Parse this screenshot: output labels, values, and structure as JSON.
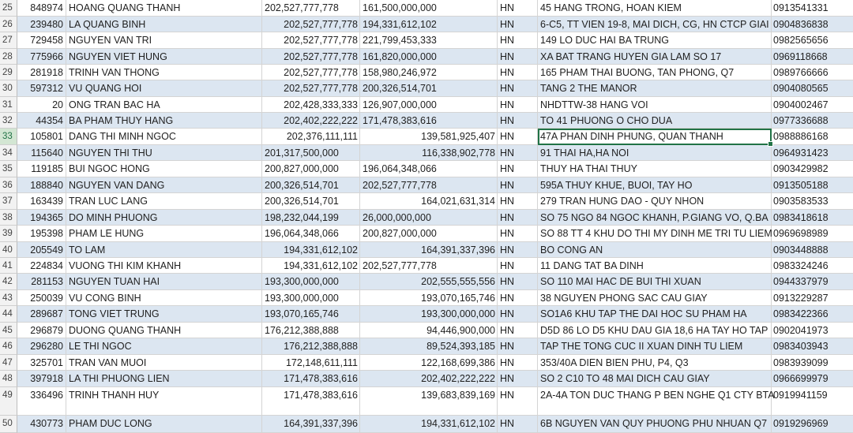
{
  "sheet": {
    "rows": [
      {
        "num": "25",
        "id": "848974",
        "name": "HOANG QUANG THANH",
        "a": "202,527,777,778",
        "a_align": "left",
        "b": "161,500,000,000",
        "b_align": "left",
        "city": "HN",
        "addr": "45 HANG TRONG, HOAN KIEM",
        "phone": "0913541331"
      },
      {
        "num": "26",
        "id": "239480",
        "name": "LA QUANG BINH",
        "a": "202,527,777,778",
        "a_align": "right",
        "b": "194,331,612,102",
        "b_align": "left",
        "city": "HN",
        "addr": "6-C5, TT VIEN 19-8, MAI DICH, CG, HN    CTCP GIAI",
        "phone": "0904836838"
      },
      {
        "num": "27",
        "id": "729458",
        "name": "NGUYEN VAN TRI",
        "a": "202,527,777,778",
        "a_align": "right",
        "b": "221,799,453,333",
        "b_align": "left",
        "city": "HN",
        "addr": "149 LO DUC HAI BA TRUNG",
        "phone": "0982565656"
      },
      {
        "num": "28",
        "id": "775966",
        "name": "NGUYEN VIET HUNG",
        "a": "202,527,777,778",
        "a_align": "right",
        "b": "161,820,000,000",
        "b_align": "left",
        "city": "HN",
        "addr": "XA BAT TRANG HUYEN GIA LAM            SO 17",
        "phone": "0969118668"
      },
      {
        "num": "29",
        "id": "281918",
        "name": "TRINH VAN THONG",
        "a": "202,527,777,778",
        "a_align": "right",
        "b": "158,980,246,972",
        "b_align": "left",
        "city": "HN",
        "addr": "165 PHAM THAI BUONG, TAN PHONG, Q7",
        "phone": "0989766666"
      },
      {
        "num": "30",
        "id": "597312",
        "name": "VU QUANG HOI",
        "a": "202,527,777,778",
        "a_align": "right",
        "b": "200,326,514,701",
        "b_align": "left",
        "city": "HN",
        "addr": "TANG 2 THE MANOR",
        "phone": "0904080565"
      },
      {
        "num": "31",
        "id": "20",
        "name": "ONG TRAN BAC HA",
        "a": "202,428,333,333",
        "a_align": "right",
        "b": "126,907,000,000",
        "b_align": "left",
        "city": "HN",
        "addr": "NHDTTW-38 HANG VOI",
        "phone": "0904002467"
      },
      {
        "num": "32",
        "id": "44354",
        "name": "BA PHAM THUY HANG",
        "a": "202,402,222,222",
        "a_align": "right",
        "b": "171,478,383,616",
        "b_align": "left",
        "city": "HN",
        "addr": "TO 41 PHUONG O CHO DUA",
        "phone": "0977336688"
      },
      {
        "num": "33",
        "id": "105801",
        "name": "DANG THI MINH NGOC",
        "a": "202,376,111,111",
        "a_align": "right",
        "b": "139,581,925,407",
        "b_align": "right",
        "city": "HN",
        "addr": "47A PHAN DINH PHUNG, QUAN THANH",
        "phone": "0988886168",
        "selected": true
      },
      {
        "num": "34",
        "id": "115640",
        "name": "NGUYEN THI THU",
        "a": "201,317,500,000",
        "a_align": "left",
        "b": "116,338,902,778",
        "b_align": "right",
        "city": "HN",
        "addr": "91 THAI HA,HA NOI",
        "phone": "0964931423"
      },
      {
        "num": "35",
        "id": "119185",
        "name": "BUI NGOC HONG",
        "a": "200,827,000,000",
        "a_align": "left",
        "b": "196,064,348,066",
        "b_align": "left",
        "city": "HN",
        "addr": "THUY HA THAI THUY",
        "phone": "0903429982"
      },
      {
        "num": "36",
        "id": "188840",
        "name": "NGUYEN VAN DANG",
        "a": "200,326,514,701",
        "a_align": "left",
        "b": "202,527,777,778",
        "b_align": "left",
        "city": "HN",
        "addr": "595A THUY KHUE, BUOI, TAY HO",
        "phone": "0913505188"
      },
      {
        "num": "37",
        "id": "163439",
        "name": "TRAN LUC LANG",
        "a": "200,326,514,701",
        "a_align": "left",
        "b": "164,021,631,314",
        "b_align": "right",
        "city": "HN",
        "addr": "279 TRAN HUNG DAO - QUY NHON",
        "phone": "0903583533"
      },
      {
        "num": "38",
        "id": "194365",
        "name": "DO MINH PHUONG",
        "a": "198,232,044,199",
        "a_align": "left",
        "b": "26,000,000,000",
        "b_align": "left",
        "city": "HN",
        "addr": "SO 75 NGO 84 NGOC KHANH, P.GIANG VO,    Q.BA",
        "phone": "0983418618"
      },
      {
        "num": "39",
        "id": "195398",
        "name": "PHAM LE HUNG",
        "a": "196,064,348,066",
        "a_align": "left",
        "b": "200,827,000,000",
        "b_align": "left",
        "city": "HN",
        "addr": "SO 88 TT 4 KHU DO THI MY DINH ME TRI    TU LIEM",
        "phone": "0969698989"
      },
      {
        "num": "40",
        "id": "205549",
        "name": "TO LAM",
        "a": "194,331,612,102",
        "a_align": "right",
        "b": "164,391,337,396",
        "b_align": "right",
        "city": "HN",
        "addr": "BO CONG AN",
        "phone": "0903448888"
      },
      {
        "num": "41",
        "id": "224834",
        "name": "VUONG THI KIM KHANH",
        "a": "194,331,612,102",
        "a_align": "right",
        "b": "202,527,777,778",
        "b_align": "left",
        "city": "HN",
        "addr": "11 DANG TAT                          BA DINH",
        "phone": "0983324246"
      },
      {
        "num": "42",
        "id": "281153",
        "name": "NGUYEN TUAN HAI",
        "a": "193,300,000,000",
        "a_align": "left",
        "b": "202,555,555,556",
        "b_align": "right",
        "city": "HN",
        "addr": "SO 110 MAI HAC DE BUI THI XUAN",
        "phone": "0944337979"
      },
      {
        "num": "43",
        "id": "250039",
        "name": "VU CONG BINH",
        "a": "193,300,000,000",
        "a_align": "left",
        "b": "193,070,165,746",
        "b_align": "right",
        "city": "HN",
        "addr": "38 NGUYEN PHONG SAC CAU GIAY",
        "phone": "0913229287"
      },
      {
        "num": "44",
        "id": "289687",
        "name": "TONG VIET TRUNG",
        "a": "193,070,165,746",
        "a_align": "left",
        "b": "193,300,000,000",
        "b_align": "right",
        "city": "HN",
        "addr": "  SO1A6 KHU TAP THE DAI HOC SU PHAM HA",
        "phone": "0983422366"
      },
      {
        "num": "45",
        "id": "296879",
        "name": "DUONG QUANG THANH",
        "a": "176,212,388,888",
        "a_align": "left",
        "b": "94,446,900,000",
        "b_align": "right",
        "city": "HN",
        "addr": "D5D 86 LO D5 KHU DAU GIA 18,6 HA TAY HO TAP",
        "phone": "0902041973"
      },
      {
        "num": "46",
        "id": "296280",
        "name": "LE THI NGOC",
        "a": "176,212,388,888",
        "a_align": "right",
        "b": "89,524,393,185",
        "b_align": "right",
        "city": "HN",
        "addr": "TAP THE TONG CUC II XUAN DINH TU LIEM",
        "phone": "0983403943"
      },
      {
        "num": "47",
        "id": "325701",
        "name": "TRAN VAN MUOI",
        "a": "172,148,611,111",
        "a_align": "right",
        "b": "122,168,699,386",
        "b_align": "right",
        "city": "HN",
        "addr": "353/40A DIEN BIEN PHU, P4, Q3",
        "phone": "0983939099"
      },
      {
        "num": "48",
        "id": "397918",
        "name": "LA THI PHUONG LIEN",
        "a": "171,478,383,616",
        "a_align": "right",
        "b": "202,402,222,222",
        "b_align": "right",
        "city": "HN",
        "addr": "SO 2 C10 TO 48 MAI DICH CAU GIAY",
        "phone": "0966699979"
      },
      {
        "num": "49",
        "id": "336496",
        "name": "TRINH THANH HUY",
        "a": "171,478,383,616",
        "a_align": "right",
        "b": "139,683,839,169",
        "b_align": "right",
        "city": "HN",
        "addr": "2A-4A TON DUC THANG P BEN NGHE Q1      CTY BTA",
        "phone": "0919941159"
      },
      {
        "num": "50",
        "id": "430773",
        "name": "PHAM DUC LONG",
        "a": "164,391,337,396",
        "a_align": "right",
        "b": "194,331,612,102",
        "b_align": "right",
        "city": "HN",
        "addr": "6B NGUYEN VAN QUY PHUONG PHU NHUAN Q7",
        "phone": "0919296969"
      }
    ]
  }
}
